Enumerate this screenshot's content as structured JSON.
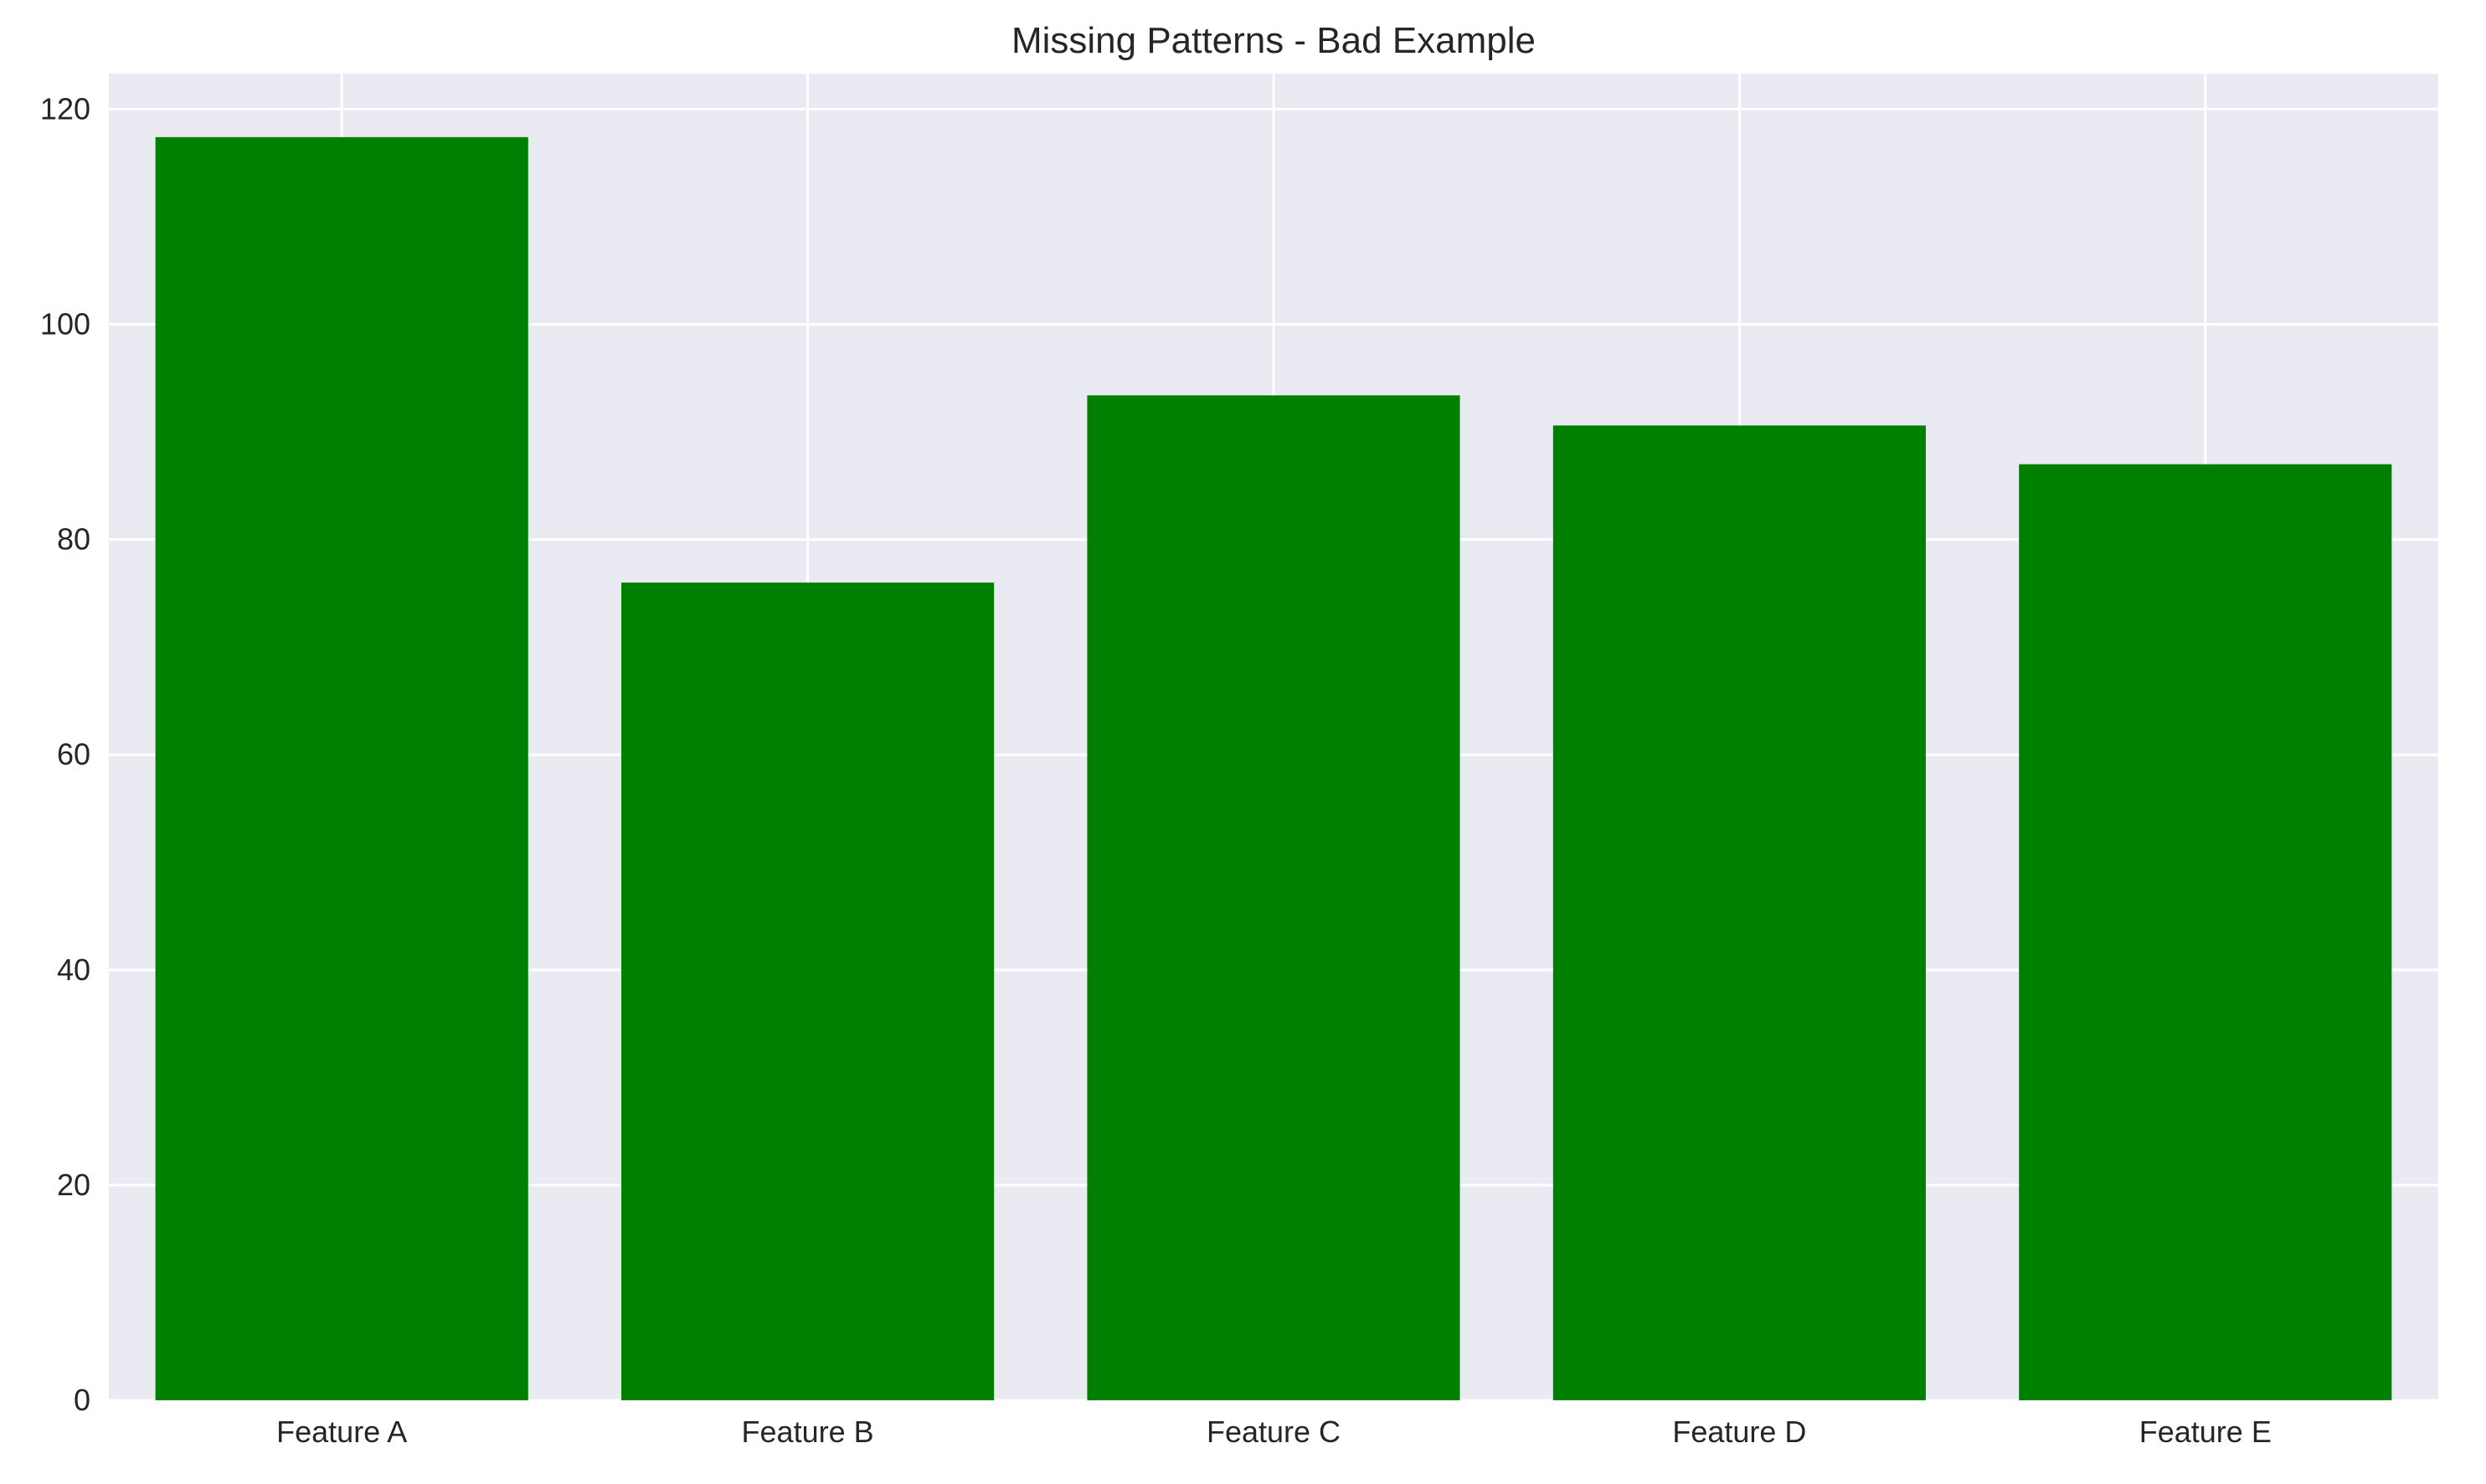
{
  "chart_data": {
    "type": "bar",
    "title": "Missing Patterns - Bad Example",
    "xlabel": "",
    "ylabel": "",
    "categories": [
      "Feature A",
      "Feature B",
      "Feature C",
      "Feature D",
      "Feature E"
    ],
    "values": [
      117.4,
      76.0,
      93.4,
      90.6,
      87.0
    ],
    "ylim": [
      0,
      123.3
    ],
    "yticks": [
      0,
      20,
      40,
      60,
      80,
      100,
      120
    ],
    "grid": true,
    "colors": {
      "bar": "#008000",
      "plot_background": "#EAEAF2",
      "grid": "#FFFFFF",
      "text": "#262626"
    }
  }
}
